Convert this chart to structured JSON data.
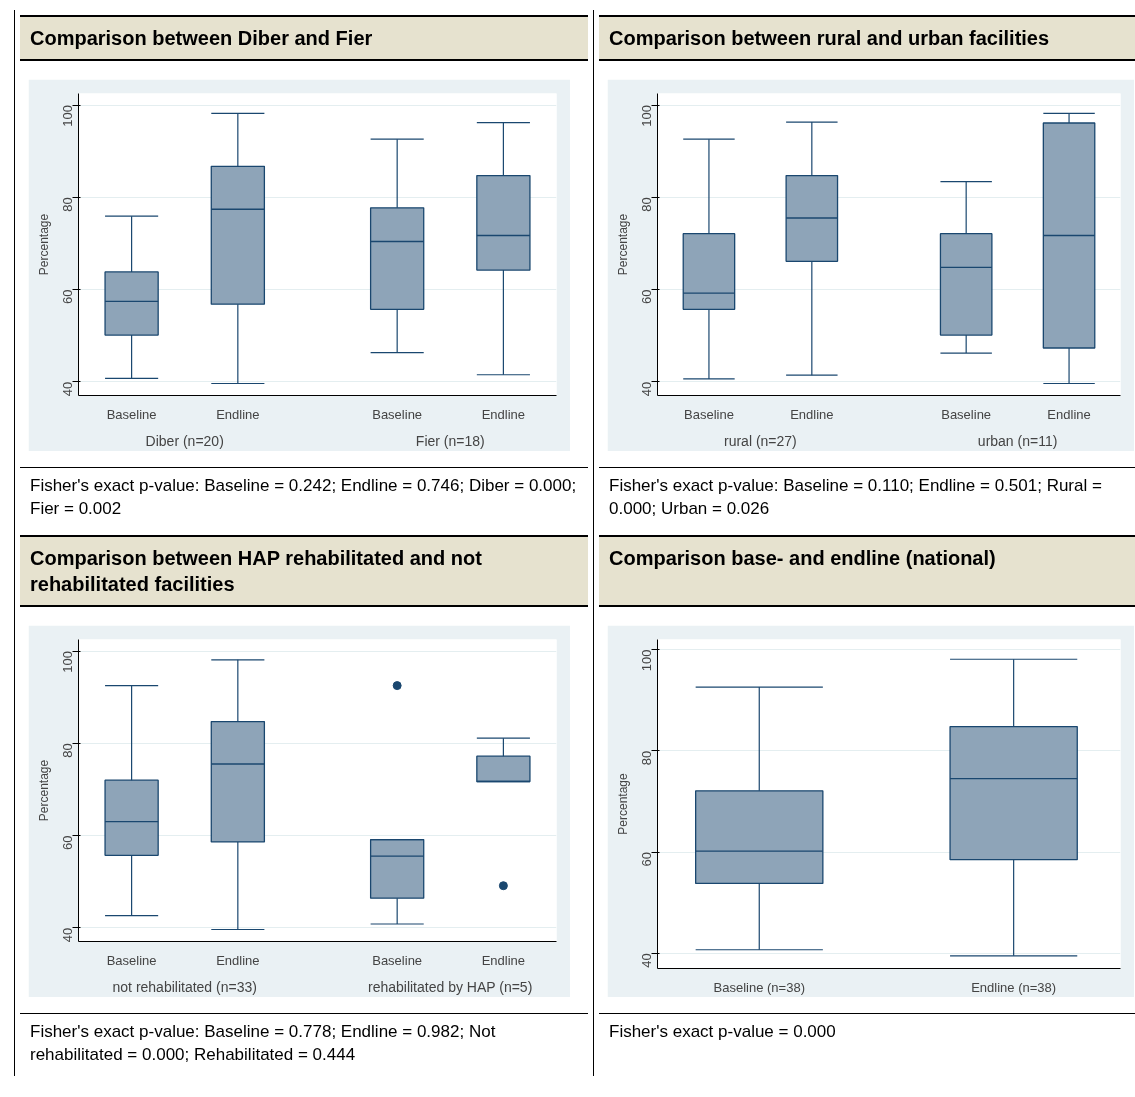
{
  "chart_data": [
    {
      "type": "box",
      "title": "Comparison between Diber and Fier",
      "ylabel": "Percentage",
      "categories": [
        "Baseline",
        "Endline",
        "Baseline",
        "Endline"
      ],
      "ylim": [
        37,
        102.5
      ],
      "yticks": [
        40,
        60,
        80,
        100
      ],
      "grid": "y",
      "annotations": [
        "Diber (n=20)",
        "Fier (n=18)",
        "Fisher's exact p-value: Baseline = 0.242; Endline = 0.746; Diber = 0.000; Fier = 0.002"
      ],
      "series": [
        {
          "color": "#8ea4b8",
          "boxes": [
            {
              "low": 40.7,
              "q1": 50.1,
              "median": 57.4,
              "q3": 63.8,
              "high": 75.9
            },
            {
              "low": 39.6,
              "q1": 56.8,
              "median": 77.4,
              "q3": 86.7,
              "high": 98.2
            },
            {
              "low": 46.3,
              "q1": 55.7,
              "median": 70.4,
              "q3": 77.7,
              "high": 92.6
            },
            {
              "low": 41.5,
              "q1": 64.2,
              "median": 71.7,
              "q3": 84.7,
              "high": 96.2
            }
          ]
        }
      ]
    },
    {
      "type": "box",
      "title": "Comparison between rural and urban facilities",
      "ylabel": "Percentage",
      "categories": [
        "Baseline",
        "Endline",
        "Baseline",
        "Endline"
      ],
      "ylim": [
        37,
        102.5
      ],
      "yticks": [
        40,
        60,
        80,
        100
      ],
      "grid": "y",
      "annotations": [
        "rural (n=27)",
        "urban (n=11)",
        "Fisher's exact p-value: Baseline = 0.110; Endline = 0.501; Rural = 0.000; Urban = 0.026"
      ],
      "series": [
        {
          "color": "#8ea4b8",
          "boxes": [
            {
              "low": 40.6,
              "q1": 55.7,
              "median": 59.2,
              "q3": 72.1,
              "high": 92.6
            },
            {
              "low": 41.4,
              "q1": 66.1,
              "median": 75.5,
              "q3": 84.7,
              "high": 96.3
            },
            {
              "low": 46.2,
              "q1": 50.1,
              "median": 64.8,
              "q3": 72.1,
              "high": 83.4
            },
            {
              "low": 39.6,
              "q1": 47.3,
              "median": 71.7,
              "q3": 96.1,
              "high": 98.2
            }
          ]
        }
      ]
    },
    {
      "type": "box",
      "title": "Comparison between HAP rehabilitated and not rehabilitated facilities",
      "ylabel": "Percentage",
      "categories": [
        "Baseline",
        "Endline",
        "Baseline",
        "Endline"
      ],
      "ylim": [
        37,
        102.5
      ],
      "yticks": [
        40,
        60,
        80,
        100
      ],
      "grid": "y",
      "annotations": [
        "not rehabilitated (n=33)",
        "rehabilitated by HAP (n=5)",
        "Fisher's exact p-value: Baseline = 0.778; Endline = 0.982; Not rehabilitated = 0.000; Rehabilitated = 0.444"
      ],
      "series": [
        {
          "color": "#8ea4b8",
          "boxes": [
            {
              "low": 42.6,
              "q1": 55.7,
              "median": 63.0,
              "q3": 72.0,
              "high": 92.5
            },
            {
              "low": 39.6,
              "q1": 58.6,
              "median": 75.5,
              "q3": 84.7,
              "high": 98.1
            },
            {
              "low": 40.8,
              "q1": 46.4,
              "median": 55.5,
              "q3": 59.1,
              "high": 59.1,
              "outliers": [
                92.5
              ]
            },
            {
              "low": 71.7,
              "q1": 71.7,
              "median": 71.7,
              "q3": 77.2,
              "high": 81.1,
              "outliers": [
                49.1
              ]
            }
          ]
        }
      ]
    },
    {
      "type": "box",
      "title": "Comparison base- and endline (national)",
      "ylabel": "Percentage",
      "categories": [
        "Baseline (n=38)",
        "Endline (n=38)"
      ],
      "ylim": [
        37,
        102
      ],
      "yticks": [
        40,
        60,
        80,
        100
      ],
      "grid": "y",
      "annotations": [
        "Fisher's exact p-value = 0.000"
      ],
      "series": [
        {
          "color": "#8ea4b8",
          "boxes": [
            {
              "low": 40.7,
              "q1": 53.8,
              "median": 60.2,
              "q3": 72.1,
              "high": 92.6
            },
            {
              "low": 39.5,
              "q1": 58.5,
              "median": 74.5,
              "q3": 84.8,
              "high": 98.1
            }
          ]
        }
      ]
    }
  ]
}
